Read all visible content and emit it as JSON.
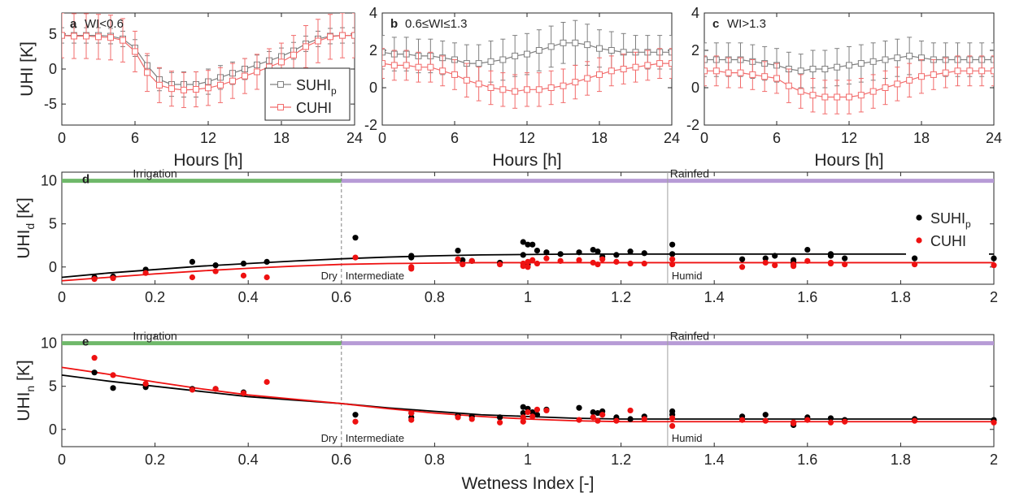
{
  "chart_data": [
    {
      "panel": "a",
      "type": "line",
      "title": "WI<0.6",
      "xlabel": "Hours [h]",
      "ylabel": "UHI [K]",
      "xlim": [
        0,
        24
      ],
      "ylim": [
        -8,
        8
      ],
      "xticks": [
        0,
        6,
        12,
        18,
        24
      ],
      "yticks": [
        -5,
        0,
        5
      ],
      "legend": "bottom-right",
      "x": [
        0,
        1,
        2,
        3,
        4,
        5,
        6,
        7,
        8,
        9,
        10,
        11,
        12,
        13,
        14,
        15,
        16,
        17,
        18,
        19,
        20,
        21,
        22,
        23,
        24
      ],
      "series": [
        {
          "name": "SUHI",
          "sub": "p",
          "color": "#7f7f7f",
          "values": [
            4.8,
            4.8,
            4.8,
            4.8,
            4.7,
            4.3,
            3.0,
            0.5,
            -1.5,
            -2.2,
            -2.2,
            -2.2,
            -1.8,
            -1.2,
            -0.6,
            0.0,
            0.6,
            1.2,
            1.8,
            2.6,
            3.6,
            4.3,
            4.7,
            4.8,
            4.8
          ],
          "err": [
            1.1,
            1.1,
            1.1,
            1.1,
            1.1,
            1.1,
            1.2,
            1.4,
            1.6,
            1.7,
            1.8,
            1.8,
            1.8,
            1.7,
            1.6,
            1.5,
            1.4,
            1.3,
            1.2,
            1.2,
            1.1,
            1.1,
            1.1,
            1.1,
            1.1
          ]
        },
        {
          "name": "CUHI",
          "color": "#f26b6b",
          "values": [
            4.8,
            4.7,
            4.7,
            4.6,
            4.5,
            4.1,
            2.5,
            -0.5,
            -2.3,
            -2.8,
            -3.0,
            -2.9,
            -2.7,
            -2.3,
            -1.7,
            -1.0,
            -0.4,
            0.3,
            1.0,
            2.0,
            3.2,
            4.0,
            4.6,
            4.8,
            4.8
          ],
          "err": [
            3.2,
            3.2,
            3.2,
            3.2,
            3.2,
            3.1,
            2.9,
            2.7,
            2.5,
            2.5,
            2.5,
            2.5,
            2.5,
            2.5,
            2.5,
            2.5,
            2.5,
            2.6,
            2.7,
            2.8,
            3.0,
            3.1,
            3.2,
            3.2,
            3.2
          ]
        }
      ]
    },
    {
      "panel": "b",
      "type": "line",
      "title": "0.6≤WI≤1.3",
      "xlabel": "Hours [h]",
      "xlim": [
        0,
        24
      ],
      "ylim": [
        -2,
        4
      ],
      "xticks": [
        0,
        6,
        12,
        18,
        24
      ],
      "yticks": [
        -2,
        0,
        2,
        4
      ],
      "x": [
        0,
        1,
        2,
        3,
        4,
        5,
        6,
        7,
        8,
        9,
        10,
        11,
        12,
        13,
        14,
        15,
        16,
        17,
        18,
        19,
        20,
        21,
        22,
        23,
        24
      ],
      "series": [
        {
          "name": "SUHI",
          "sub": "p",
          "color": "#7f7f7f",
          "values": [
            1.9,
            1.8,
            1.8,
            1.7,
            1.7,
            1.6,
            1.5,
            1.3,
            1.3,
            1.4,
            1.5,
            1.7,
            1.8,
            2.0,
            2.2,
            2.4,
            2.4,
            2.3,
            2.1,
            2.0,
            1.9,
            1.9,
            1.9,
            1.9,
            1.9
          ],
          "err": [
            0.9,
            0.9,
            0.9,
            0.9,
            0.9,
            0.9,
            0.9,
            1.0,
            1.0,
            1.1,
            1.1,
            1.1,
            1.1,
            1.1,
            1.1,
            1.1,
            1.2,
            1.1,
            1.0,
            1.0,
            1.0,
            0.9,
            0.9,
            0.9,
            0.9
          ]
        },
        {
          "name": "CUHI",
          "color": "#f26b6b",
          "values": [
            1.3,
            1.2,
            1.2,
            1.1,
            1.1,
            0.9,
            0.7,
            0.4,
            0.2,
            0.0,
            -0.1,
            -0.2,
            -0.1,
            -0.1,
            0.0,
            0.1,
            0.3,
            0.5,
            0.7,
            0.9,
            1.0,
            1.1,
            1.2,
            1.3,
            1.3
          ],
          "err": [
            0.8,
            0.8,
            0.8,
            0.8,
            0.8,
            0.8,
            0.8,
            0.9,
            0.9,
            0.9,
            0.9,
            0.9,
            0.9,
            0.9,
            0.9,
            0.9,
            0.9,
            0.9,
            0.9,
            0.8,
            0.8,
            0.8,
            0.8,
            0.8,
            0.8
          ]
        }
      ]
    },
    {
      "panel": "c",
      "type": "line",
      "title": "WI>1.3",
      "xlabel": "Hours [h]",
      "xlim": [
        0,
        24
      ],
      "ylim": [
        -2,
        4
      ],
      "xticks": [
        0,
        6,
        12,
        18,
        24
      ],
      "yticks": [
        -2,
        0,
        2,
        4
      ],
      "x": [
        0,
        1,
        2,
        3,
        4,
        5,
        6,
        7,
        8,
        9,
        10,
        11,
        12,
        13,
        14,
        15,
        16,
        17,
        18,
        19,
        20,
        21,
        22,
        23,
        24
      ],
      "series": [
        {
          "name": "SUHI",
          "sub": "p",
          "color": "#7f7f7f",
          "values": [
            1.5,
            1.5,
            1.5,
            1.5,
            1.4,
            1.3,
            1.2,
            1.0,
            0.9,
            1.0,
            1.0,
            1.1,
            1.2,
            1.3,
            1.4,
            1.5,
            1.6,
            1.7,
            1.6,
            1.5,
            1.5,
            1.5,
            1.5,
            1.5,
            1.5
          ],
          "err": [
            0.9,
            0.9,
            0.9,
            0.9,
            0.9,
            0.9,
            0.9,
            0.9,
            0.9,
            1.0,
            1.0,
            1.0,
            1.0,
            1.0,
            1.0,
            1.0,
            1.0,
            1.0,
            0.9,
            0.9,
            0.9,
            0.9,
            0.9,
            0.9,
            0.9
          ]
        },
        {
          "name": "CUHI",
          "color": "#f26b6b",
          "values": [
            0.9,
            0.9,
            0.8,
            0.8,
            0.7,
            0.6,
            0.5,
            0.1,
            -0.2,
            -0.4,
            -0.5,
            -0.5,
            -0.5,
            -0.4,
            -0.2,
            0.0,
            0.2,
            0.4,
            0.6,
            0.7,
            0.8,
            0.9,
            0.9,
            0.9,
            0.9
          ],
          "err": [
            0.8,
            0.8,
            0.8,
            0.8,
            0.8,
            0.8,
            0.8,
            0.9,
            0.9,
            0.9,
            0.9,
            0.9,
            0.9,
            0.9,
            0.9,
            0.9,
            0.9,
            0.9,
            0.9,
            0.8,
            0.8,
            0.8,
            0.8,
            0.8,
            0.8
          ]
        }
      ]
    },
    {
      "panel": "d",
      "type": "scatter",
      "ylabel": "UHI",
      "ylabel_sub": "d",
      "ylabel_unit": "[K]",
      "xlim": [
        0,
        2
      ],
      "ylim": [
        -2,
        11
      ],
      "xticks": [
        0,
        0.2,
        0.4,
        0.6,
        0.8,
        1,
        1.2,
        1.4,
        1.6,
        1.8,
        2
      ],
      "yticks": [
        0,
        5,
        10
      ],
      "legend": "top-right",
      "band_labels": [
        "Irrigation",
        "Rainfed"
      ],
      "zone_labels": [
        "Dry",
        "Intermediate",
        "Humid"
      ],
      "thresholds": [
        0.6,
        1.3
      ],
      "series": [
        {
          "name": "SUHI",
          "sub": "p",
          "color": "#000000",
          "x": [
            0.07,
            0.11,
            0.18,
            0.28,
            0.33,
            0.39,
            0.44,
            0.63,
            0.75,
            0.75,
            0.85,
            0.86,
            0.88,
            0.94,
            0.99,
            0.99,
            1.0,
            1.0,
            1.01,
            1.02,
            1.04,
            1.07,
            1.11,
            1.14,
            1.15,
            1.16,
            1.19,
            1.22,
            1.25,
            1.31,
            1.31,
            1.46,
            1.51,
            1.53,
            1.57,
            1.57,
            1.6,
            1.65,
            1.65,
            1.68,
            1.83,
            2.0
          ],
          "y": [
            -1.2,
            -1.1,
            -0.3,
            0.6,
            0.2,
            0.4,
            0.6,
            3.4,
            1.1,
            1.3,
            1.9,
            0.8,
            0.7,
            0.5,
            2.9,
            1.4,
            2.6,
            0.3,
            2.6,
            1.9,
            1.7,
            1.5,
            1.7,
            2.0,
            1.8,
            1.2,
            1.4,
            1.8,
            1.6,
            2.6,
            1.5,
            0.9,
            1.0,
            1.3,
            0.8,
            0.5,
            2.0,
            1.3,
            1.5,
            1.0,
            1.0,
            1.0
          ]
        },
        {
          "name": "CUHI",
          "color": "#ee1111",
          "x": [
            0.07,
            0.11,
            0.18,
            0.28,
            0.33,
            0.39,
            0.44,
            0.63,
            0.75,
            0.75,
            0.85,
            0.86,
            0.88,
            0.94,
            0.99,
            0.99,
            1.0,
            1.0,
            1.01,
            1.02,
            1.04,
            1.07,
            1.11,
            1.14,
            1.15,
            1.16,
            1.19,
            1.22,
            1.25,
            1.31,
            1.31,
            1.46,
            1.51,
            1.53,
            1.57,
            1.57,
            1.6,
            1.65,
            1.65,
            1.68,
            1.83,
            2.0
          ],
          "y": [
            -1.4,
            -1.3,
            -0.7,
            -1.2,
            -0.5,
            -1.0,
            -1.2,
            1.1,
            -0.2,
            0.0,
            0.9,
            0.3,
            0.7,
            0.3,
            0.4,
            0.1,
            0.6,
            0.0,
            0.8,
            0.4,
            1.0,
            0.7,
            0.8,
            0.5,
            0.3,
            0.9,
            0.6,
            0.4,
            0.4,
            0.9,
            0.3,
            0.0,
            0.5,
            0.2,
            0.3,
            0.1,
            0.7,
            0.5,
            0.4,
            0.3,
            0.3,
            0.2
          ]
        }
      ],
      "fits": [
        {
          "color": "#000000",
          "x": [
            0,
            0.1,
            0.2,
            0.3,
            0.4,
            0.5,
            0.6,
            0.7,
            0.8,
            0.9,
            1.0,
            1.1,
            1.2,
            1.3,
            1.4,
            1.6,
            1.8,
            2.0
          ],
          "y": [
            -1.2,
            -0.7,
            -0.3,
            0.1,
            0.4,
            0.7,
            0.95,
            1.15,
            1.3,
            1.4,
            1.45,
            1.5,
            1.5,
            1.5,
            1.5,
            1.5,
            1.5,
            1.5
          ]
        },
        {
          "color": "#ee1111",
          "x": [
            0,
            0.1,
            0.2,
            0.3,
            0.4,
            0.5,
            0.6,
            0.7,
            0.8,
            0.9,
            1.0,
            1.1,
            1.2,
            1.3,
            1.4,
            1.6,
            1.8,
            2.0
          ],
          "y": [
            -1.6,
            -1.2,
            -0.8,
            -0.45,
            -0.15,
            0.1,
            0.3,
            0.4,
            0.45,
            0.5,
            0.5,
            0.5,
            0.5,
            0.5,
            0.5,
            0.5,
            0.5,
            0.5
          ]
        }
      ]
    },
    {
      "panel": "e",
      "type": "scatter",
      "xlabel": "Wetness Index [-]",
      "ylabel": "UHI",
      "ylabel_sub": "n",
      "ylabel_unit": "[K]",
      "xlim": [
        0,
        2
      ],
      "ylim": [
        -2,
        11
      ],
      "xticks": [
        0,
        0.2,
        0.4,
        0.6,
        0.8,
        1,
        1.2,
        1.4,
        1.6,
        1.8,
        2
      ],
      "yticks": [
        0,
        5,
        10
      ],
      "band_labels": [
        "Irrigation",
        "Rainfed"
      ],
      "zone_labels": [
        "Dry",
        "Intermediate",
        "Humid"
      ],
      "thresholds": [
        0.6,
        1.3
      ],
      "series": [
        {
          "name": "SUHI",
          "sub": "p",
          "color": "#000000",
          "x": [
            0.07,
            0.11,
            0.18,
            0.28,
            0.33,
            0.39,
            0.63,
            0.75,
            0.75,
            0.85,
            0.88,
            0.94,
            0.99,
            0.99,
            1.0,
            1.01,
            1.02,
            1.04,
            1.11,
            1.14,
            1.15,
            1.16,
            1.19,
            1.22,
            1.25,
            1.31,
            1.31,
            1.46,
            1.51,
            1.57,
            1.57,
            1.6,
            1.65,
            1.68,
            1.83,
            2.0
          ],
          "y": [
            6.6,
            4.8,
            4.9,
            4.7,
            4.7,
            4.3,
            1.7,
            1.4,
            1.9,
            1.6,
            1.5,
            1.4,
            2.6,
            1.9,
            2.4,
            2.0,
            1.7,
            2.3,
            2.5,
            2.0,
            1.9,
            2.1,
            1.4,
            1.2,
            1.5,
            2.1,
            1.7,
            1.5,
            1.7,
            0.5,
            0.8,
            1.4,
            1.3,
            1.1,
            1.2,
            1.1
          ]
        },
        {
          "name": "CUHI",
          "color": "#ee1111",
          "x": [
            0.07,
            0.11,
            0.18,
            0.28,
            0.33,
            0.39,
            0.44,
            0.63,
            0.75,
            0.75,
            0.85,
            0.88,
            0.94,
            0.99,
            0.99,
            1.0,
            1.01,
            1.02,
            1.04,
            1.11,
            1.14,
            1.15,
            1.16,
            1.19,
            1.22,
            1.25,
            1.31,
            1.31,
            1.46,
            1.51,
            1.57,
            1.57,
            1.6,
            1.65,
            1.68,
            1.83,
            2.0
          ],
          "y": [
            8.3,
            6.3,
            5.3,
            4.6,
            4.7,
            4.2,
            5.5,
            0.9,
            1.9,
            1.1,
            1.4,
            1.2,
            0.8,
            0.9,
            1.4,
            2.0,
            1.5,
            2.3,
            2.2,
            1.1,
            1.4,
            1.0,
            1.7,
            1.0,
            2.2,
            1.2,
            0.4,
            1.3,
            1.1,
            1.0,
            0.8,
            0.7,
            1.1,
            0.8,
            0.9,
            1.0,
            0.8
          ]
        }
      ],
      "fits": [
        {
          "color": "#000000",
          "x": [
            0,
            0.1,
            0.2,
            0.3,
            0.4,
            0.5,
            0.6,
            0.7,
            0.8,
            0.9,
            1.0,
            1.1,
            1.2,
            1.3,
            1.4,
            1.6,
            1.8,
            2.0
          ],
          "y": [
            6.3,
            5.6,
            5.0,
            4.4,
            3.8,
            3.4,
            3.0,
            2.5,
            2.1,
            1.7,
            1.5,
            1.3,
            1.2,
            1.2,
            1.2,
            1.2,
            1.2,
            1.2
          ]
        },
        {
          "color": "#ee1111",
          "x": [
            0,
            0.1,
            0.2,
            0.3,
            0.4,
            0.5,
            0.6,
            0.7,
            0.8,
            0.9,
            1.0,
            1.1,
            1.2,
            1.3,
            1.4,
            1.6,
            1.8,
            2.0
          ],
          "y": [
            7.2,
            6.4,
            5.5,
            4.7,
            4.0,
            3.5,
            3.0,
            2.4,
            1.9,
            1.5,
            1.2,
            1.0,
            0.9,
            0.9,
            0.9,
            0.9,
            0.9,
            0.9
          ]
        }
      ]
    }
  ]
}
